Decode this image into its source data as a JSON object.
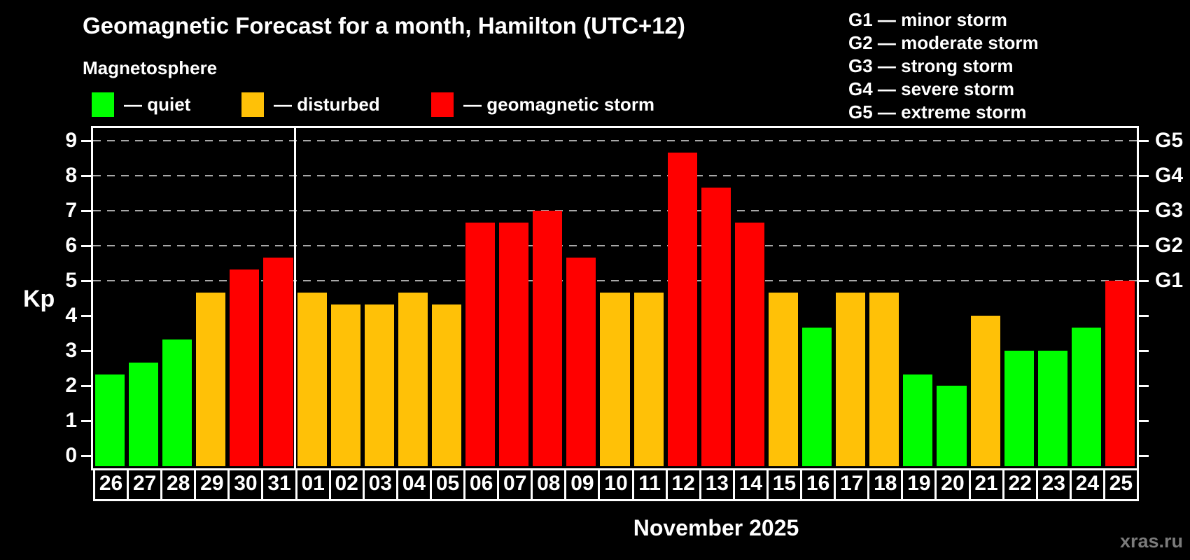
{
  "header": {
    "title": "Geomagnetic Forecast for a month, Hamilton (UTC+12)",
    "subtitle": "Magnetosphere"
  },
  "legend": {
    "items": [
      {
        "label": "— quiet",
        "status": "quiet",
        "color": "#00ff00"
      },
      {
        "label": "— disturbed",
        "status": "disturbed",
        "color": "#ffc107"
      },
      {
        "label": "— geomagnetic storm",
        "status": "storm",
        "color": "#ff0000"
      }
    ]
  },
  "g_scale_legend": {
    "lines": [
      "G1 — minor storm",
      "G2 — moderate storm",
      "G3 — strong storm",
      "G4 — severe storm",
      "G5 — extreme storm"
    ]
  },
  "footer": {
    "month_label": "November 2025",
    "watermark": "xras.ru"
  },
  "chart_data": {
    "type": "bar",
    "title": "Geomagnetic Forecast for a month, Hamilton (UTC+12)",
    "subtitle": "Magnetosphere",
    "ylabel": "Kp",
    "xlabel": "November 2025",
    "ylim": [
      0,
      9
    ],
    "yticks": [
      0,
      1,
      2,
      3,
      4,
      5,
      6,
      7,
      8,
      9
    ],
    "grid_kp": [
      5,
      6,
      7,
      8,
      9
    ],
    "grid_on": true,
    "legend_position": "top",
    "right_axis_labels": [
      {
        "kp": 5,
        "text": "G1"
      },
      {
        "kp": 6,
        "text": "G2"
      },
      {
        "kp": 7,
        "text": "G3"
      },
      {
        "kp": 8,
        "text": "G4"
      },
      {
        "kp": 9,
        "text": "G5"
      }
    ],
    "status_colors": {
      "quiet": "#00ff00",
      "disturbed": "#ffc107",
      "storm": "#ff0000"
    },
    "november_start_index": 6,
    "bars": [
      {
        "day": "26",
        "value": 2.33,
        "status": "quiet"
      },
      {
        "day": "27",
        "value": 2.67,
        "status": "quiet"
      },
      {
        "day": "28",
        "value": 3.33,
        "status": "quiet"
      },
      {
        "day": "29",
        "value": 4.67,
        "status": "disturbed"
      },
      {
        "day": "30",
        "value": 5.33,
        "status": "storm"
      },
      {
        "day": "31",
        "value": 5.67,
        "status": "storm"
      },
      {
        "day": "01",
        "value": 4.67,
        "status": "disturbed"
      },
      {
        "day": "02",
        "value": 4.33,
        "status": "disturbed"
      },
      {
        "day": "03",
        "value": 4.33,
        "status": "disturbed"
      },
      {
        "day": "04",
        "value": 4.67,
        "status": "disturbed"
      },
      {
        "day": "05",
        "value": 4.33,
        "status": "disturbed"
      },
      {
        "day": "06",
        "value": 6.67,
        "status": "storm"
      },
      {
        "day": "07",
        "value": 6.67,
        "status": "storm"
      },
      {
        "day": "08",
        "value": 7.0,
        "status": "storm"
      },
      {
        "day": "09",
        "value": 5.67,
        "status": "storm"
      },
      {
        "day": "10",
        "value": 4.67,
        "status": "disturbed"
      },
      {
        "day": "11",
        "value": 4.67,
        "status": "disturbed"
      },
      {
        "day": "12",
        "value": 8.67,
        "status": "storm"
      },
      {
        "day": "13",
        "value": 7.67,
        "status": "storm"
      },
      {
        "day": "14",
        "value": 6.67,
        "status": "storm"
      },
      {
        "day": "15",
        "value": 4.67,
        "status": "disturbed"
      },
      {
        "day": "16",
        "value": 3.67,
        "status": "quiet"
      },
      {
        "day": "17",
        "value": 4.67,
        "status": "disturbed"
      },
      {
        "day": "18",
        "value": 4.67,
        "status": "disturbed"
      },
      {
        "day": "19",
        "value": 2.33,
        "status": "quiet"
      },
      {
        "day": "20",
        "value": 2.0,
        "status": "quiet"
      },
      {
        "day": "21",
        "value": 4.0,
        "status": "disturbed"
      },
      {
        "day": "22",
        "value": 3.0,
        "status": "quiet"
      },
      {
        "day": "23",
        "value": 3.0,
        "status": "quiet"
      },
      {
        "day": "24",
        "value": 3.67,
        "status": "quiet"
      },
      {
        "day": "25",
        "value": 5.0,
        "status": "storm"
      }
    ]
  }
}
